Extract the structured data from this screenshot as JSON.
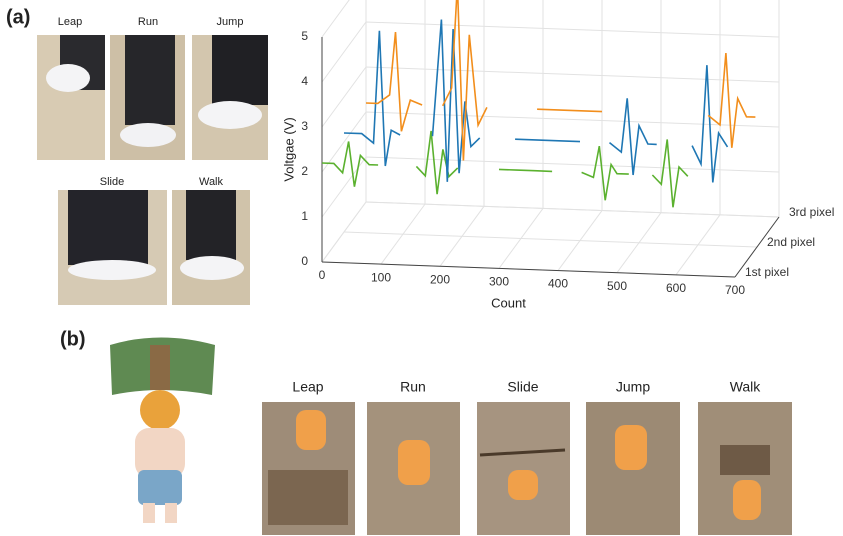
{
  "panel_a_label": "(a)",
  "photo_labels": [
    "Leap",
    "Run",
    "Jump",
    "Slide",
    "Walk"
  ],
  "chart_data": {
    "type": "line3d",
    "xlabel": "Count",
    "ylabel": "Voltgae (V)",
    "xlim": [
      0,
      700
    ],
    "xticks": [
      0,
      100,
      200,
      300,
      400,
      500,
      600,
      700
    ],
    "ylim": [
      0,
      5
    ],
    "yticks": [
      0,
      1,
      2,
      3,
      4,
      5
    ],
    "zcategories": [
      "1st pixel",
      "2nd pixel",
      "3rd pixel"
    ],
    "grid": true,
    "series": [
      {
        "color": "#5bb12f",
        "x": [
          0,
          20,
          35,
          45,
          55,
          65,
          80,
          95,
          100,
          160,
          175,
          185,
          195,
          205,
          215,
          230,
          240,
          300,
          330,
          360,
          390,
          400,
          440,
          460,
          470,
          480,
          490,
          500,
          520,
          530,
          560,
          575,
          585,
          595,
          605,
          620
        ],
        "values": [
          2.2,
          2.2,
          2.0,
          2.7,
          1.7,
          2.4,
          2.2,
          2.2,
          null,
          2.2,
          2.0,
          3.0,
          1.6,
          2.6,
          2.0,
          2.2,
          null,
          2.2,
          2.2,
          2.2,
          2.2,
          null,
          2.2,
          2.1,
          2.8,
          1.6,
          2.4,
          2.2,
          2.2,
          null,
          2.2,
          2.0,
          3.0,
          1.5,
          2.4,
          2.2
        ]
      },
      {
        "color": "#1f77b4",
        "x": [
          0,
          30,
          50,
          60,
          70,
          80,
          95,
          100,
          150,
          165,
          175,
          185,
          195,
          205,
          215,
          230,
          240,
          290,
          330,
          370,
          400,
          410,
          450,
          470,
          480,
          490,
          500,
          515,
          530,
          540,
          590,
          605,
          615,
          625,
          635,
          650
        ],
        "values": [
          2.2,
          2.2,
          2.0,
          4.5,
          1.5,
          2.3,
          2.2,
          null,
          2.2,
          4.8,
          1.2,
          4.6,
          1.4,
          3.0,
          2.0,
          2.2,
          null,
          2.2,
          2.2,
          2.2,
          2.2,
          null,
          2.2,
          2.0,
          3.2,
          1.5,
          2.6,
          2.2,
          2.2,
          null,
          2.2,
          1.8,
          4.0,
          1.4,
          2.5,
          2.2
        ]
      },
      {
        "color": "#f28e1c",
        "x": [
          0,
          20,
          40,
          50,
          60,
          75,
          95,
          100,
          130,
          145,
          155,
          165,
          175,
          190,
          205,
          215,
          290,
          330,
          370,
          400,
          410,
          580,
          600,
          610,
          620,
          630,
          645,
          660
        ],
        "values": [
          2.2,
          2.2,
          2.4,
          3.8,
          1.6,
          2.3,
          2.2,
          null,
          2.2,
          2.6,
          4.9,
          1.0,
          3.8,
          1.8,
          2.2,
          null,
          2.2,
          2.2,
          2.2,
          2.2,
          null,
          2.2,
          2.0,
          3.6,
          1.5,
          2.6,
          2.2,
          2.2
        ]
      }
    ]
  },
  "panel_b_label": "(b)",
  "game_labels": [
    "Leap",
    "Run",
    "Slide",
    "Jump",
    "Walk"
  ]
}
